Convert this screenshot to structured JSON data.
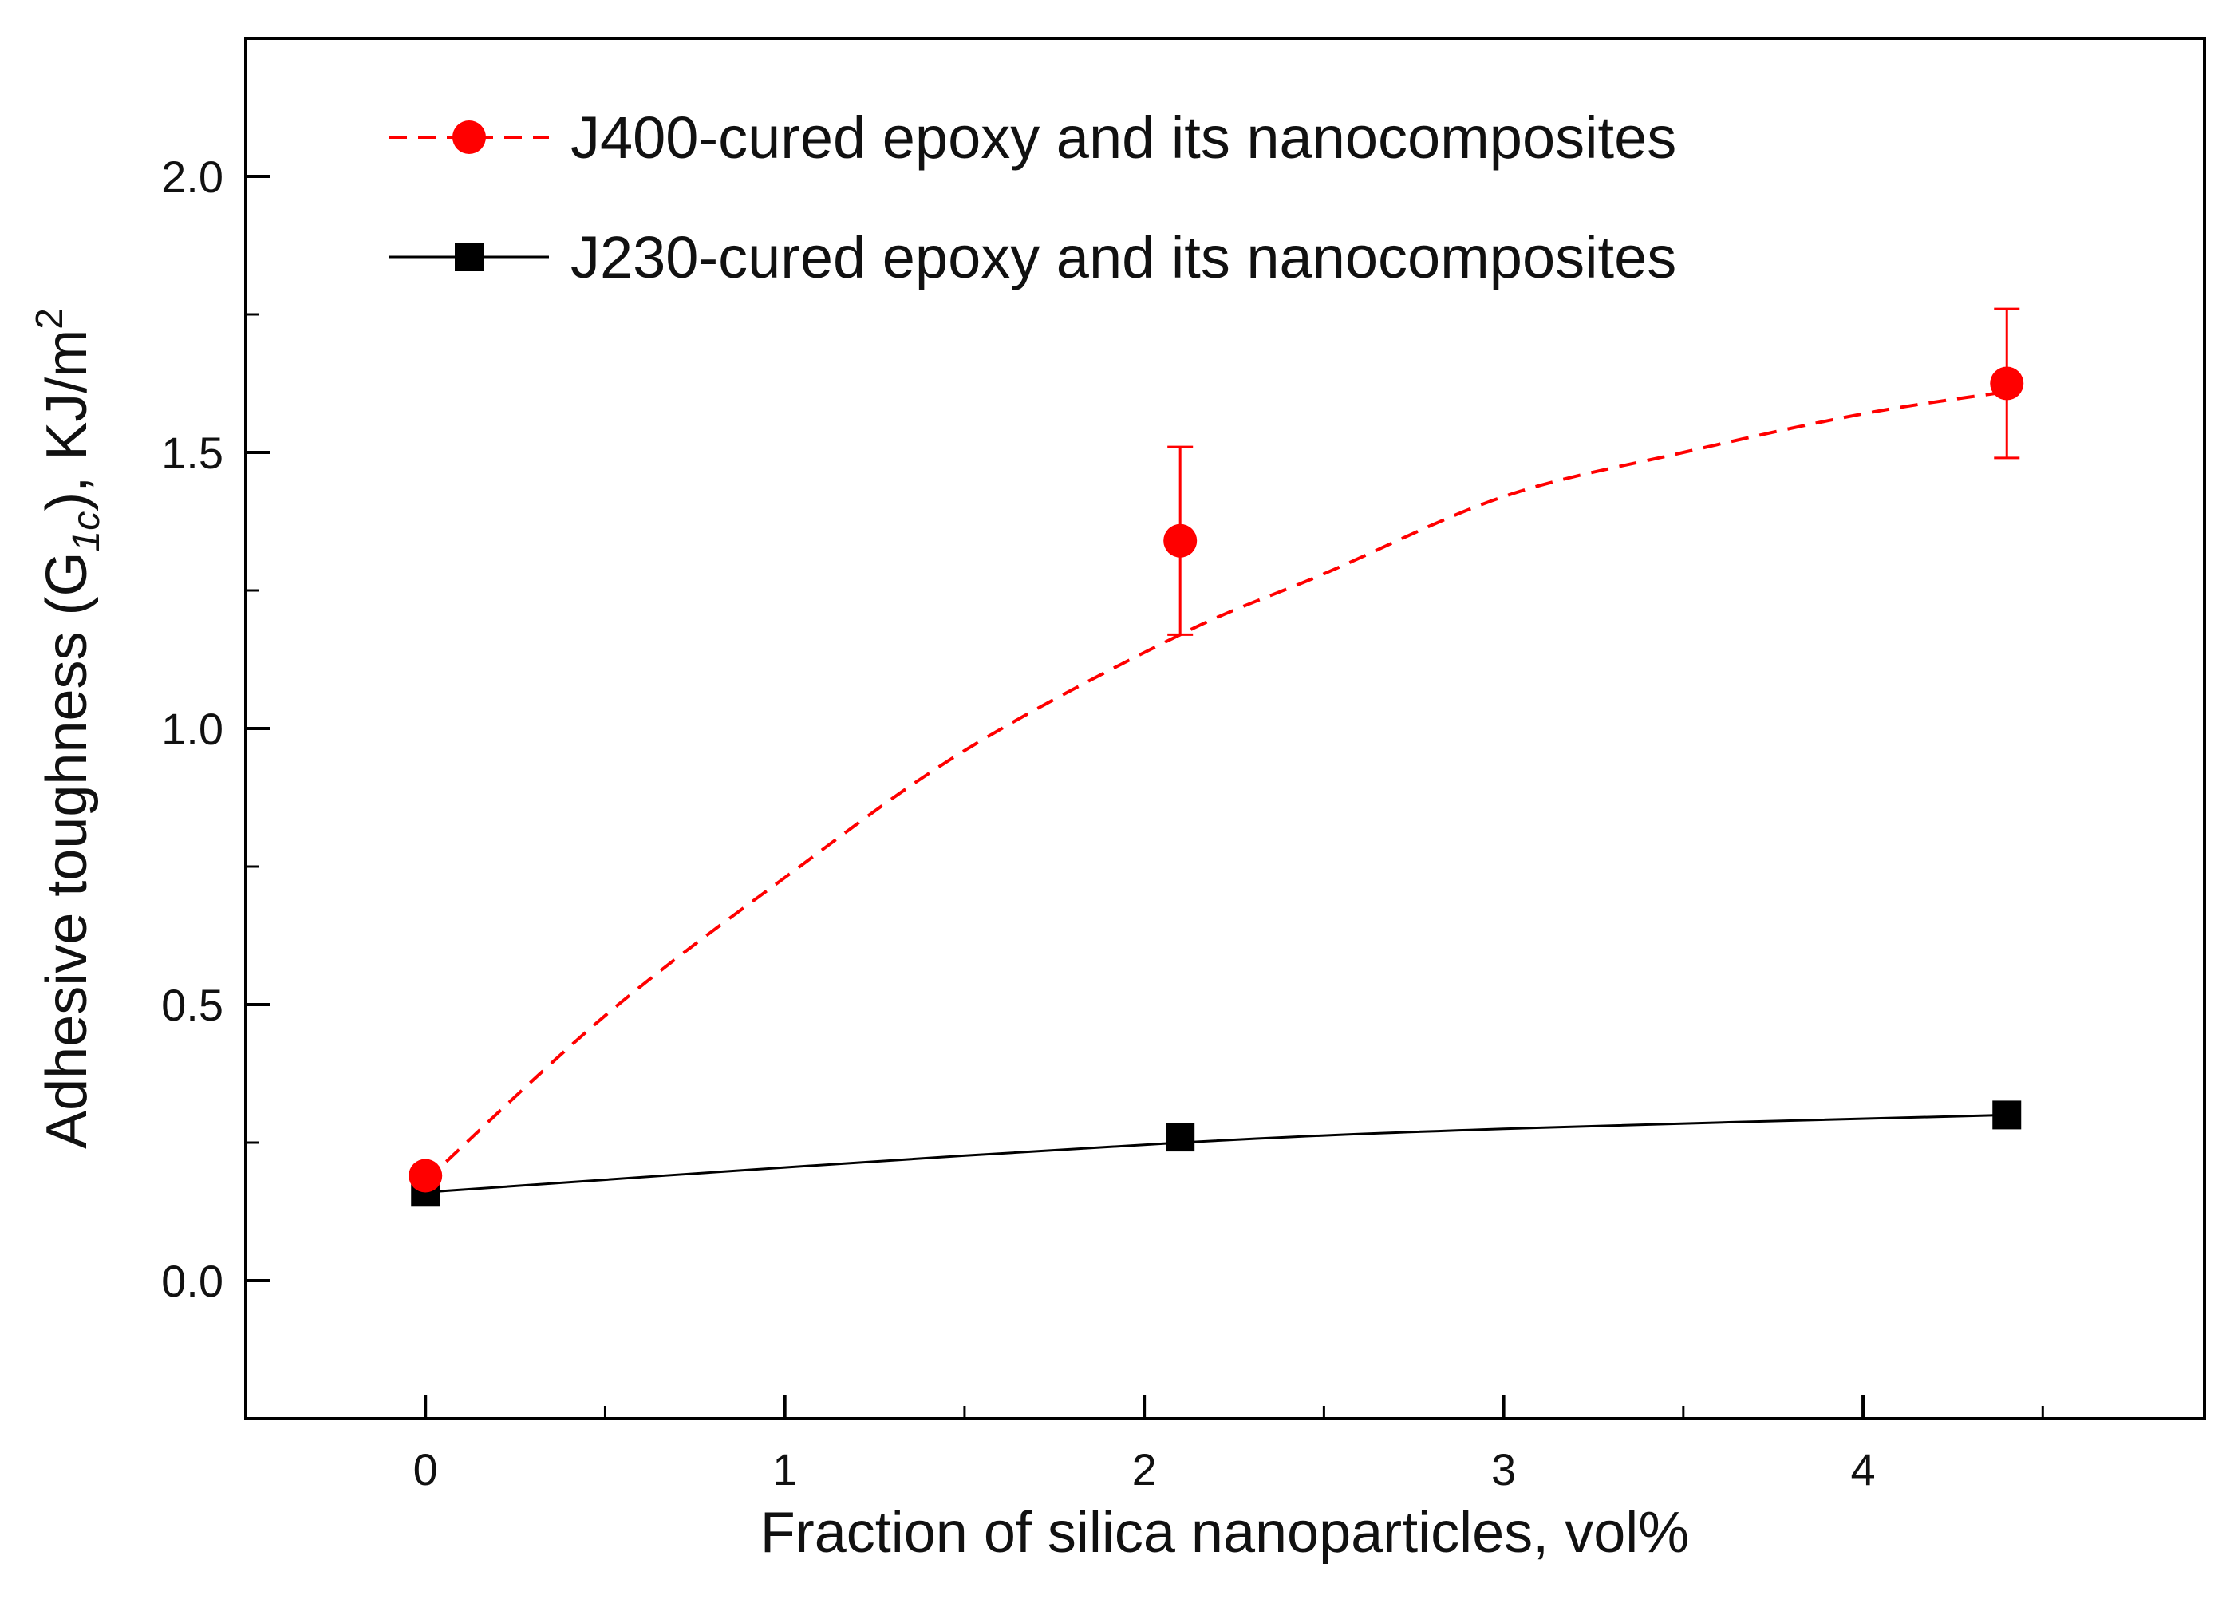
{
  "chart_data": {
    "type": "line",
    "xlabel": "Fraction of silica nanoparticles, vol%",
    "ylabel": {
      "prefix": "Adhesive toughness (G",
      "subscript": "1c",
      "suffix": "), KJ/m",
      "superscript": "2"
    },
    "xlim": [
      -0.5,
      4.95
    ],
    "ylim": [
      -0.25,
      2.25
    ],
    "x_ticks": [
      0,
      1,
      2,
      3,
      4
    ],
    "x_tick_labels": [
      "0",
      "1",
      "2",
      "3",
      "4"
    ],
    "x_minor_ticks": [
      0.5,
      1.5,
      2.5,
      3.5,
      4.5
    ],
    "y_ticks": [
      0.0,
      0.5,
      1.0,
      1.5,
      2.0
    ],
    "y_tick_labels": [
      "0.0",
      "0.5",
      "1.0",
      "1.5",
      "2.0"
    ],
    "y_minor_ticks": [
      -0.25,
      0.25,
      0.75,
      1.25,
      1.75
    ],
    "grid": false,
    "legend_position": "top-left",
    "series": [
      {
        "name": "J400-cured epoxy and its nanocomposites",
        "color": "#ff0000",
        "marker": "circle",
        "line_style": "dashed",
        "points": [
          {
            "x": 0,
            "y": 0.19
          },
          {
            "x": 2.1,
            "y": 1.34,
            "err": 0.17
          },
          {
            "x": 4.4,
            "y": 1.625,
            "err": 0.135
          }
        ],
        "fit_curve": [
          [
            0,
            0.18
          ],
          [
            0.5,
            0.48
          ],
          [
            1,
            0.73
          ],
          [
            1.5,
            0.96
          ],
          [
            2.1,
            1.17
          ],
          [
            2.5,
            1.28
          ],
          [
            3,
            1.42
          ],
          [
            3.5,
            1.5
          ],
          [
            4,
            1.57
          ],
          [
            4.4,
            1.61
          ]
        ]
      },
      {
        "name": "J230-cured epoxy and its nanocomposites",
        "color": "#000000",
        "marker": "square",
        "line_style": "solid",
        "points": [
          {
            "x": 0,
            "y": 0.16
          },
          {
            "x": 2.1,
            "y": 0.26
          },
          {
            "x": 4.4,
            "y": 0.3
          }
        ],
        "fit_curve": [
          [
            0,
            0.16
          ],
          [
            1,
            0.205
          ],
          [
            2.1,
            0.25
          ],
          [
            3,
            0.275
          ],
          [
            4.4,
            0.3
          ]
        ]
      }
    ]
  }
}
